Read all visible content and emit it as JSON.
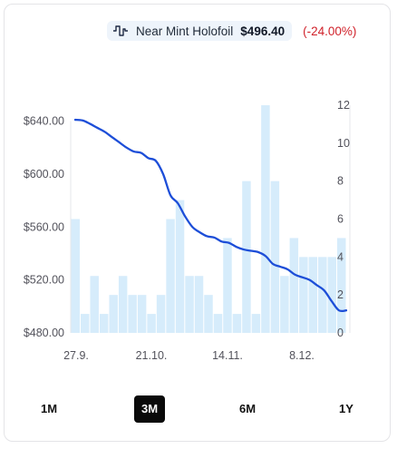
{
  "legend": {
    "icon": "line-chart-icon",
    "name": "Near Mint Holofoil",
    "price": "$496.40",
    "change": "(-24.00%)",
    "change_color": "#d0212a"
  },
  "colors": {
    "line": "#1d4ed8",
    "bar": "#d6ecfb",
    "grid": "#e5e7eb"
  },
  "chart_data": {
    "type": "line",
    "x_tick_labels": [
      "27.9.",
      "21.10.",
      "14.11.",
      "8.12."
    ],
    "y_left": {
      "ticks": [
        "$640.00",
        "$600.00",
        "$560.00",
        "$520.00",
        "$480.00"
      ],
      "range": [
        480,
        652
      ]
    },
    "y_right": {
      "ticks": [
        "12",
        "10",
        "8",
        "6",
        "4",
        "2",
        "0"
      ],
      "range": [
        0,
        12
      ]
    },
    "series": [
      {
        "type": "line",
        "axis": "left",
        "values": [
          641,
          640.5,
          638,
          635,
          632,
          628,
          624,
          620,
          617,
          616,
          612,
          610,
          600,
          584,
          578,
          568,
          560,
          556,
          553,
          552,
          549,
          548,
          545,
          543,
          542,
          541,
          538,
          532,
          530,
          528,
          524,
          522,
          520,
          516,
          512,
          504,
          497,
          497
        ]
      },
      {
        "type": "bar",
        "axis": "right",
        "values": [
          6,
          1,
          3,
          1,
          2,
          3,
          2,
          2,
          1,
          2,
          6,
          7,
          3,
          3,
          2,
          1,
          5,
          1,
          8,
          1,
          12,
          8,
          3,
          5,
          4,
          4,
          4,
          4,
          5
        ]
      }
    ]
  },
  "tabs": {
    "items": [
      "1M",
      "3M",
      "6M",
      "1Y"
    ],
    "active": "3M"
  }
}
